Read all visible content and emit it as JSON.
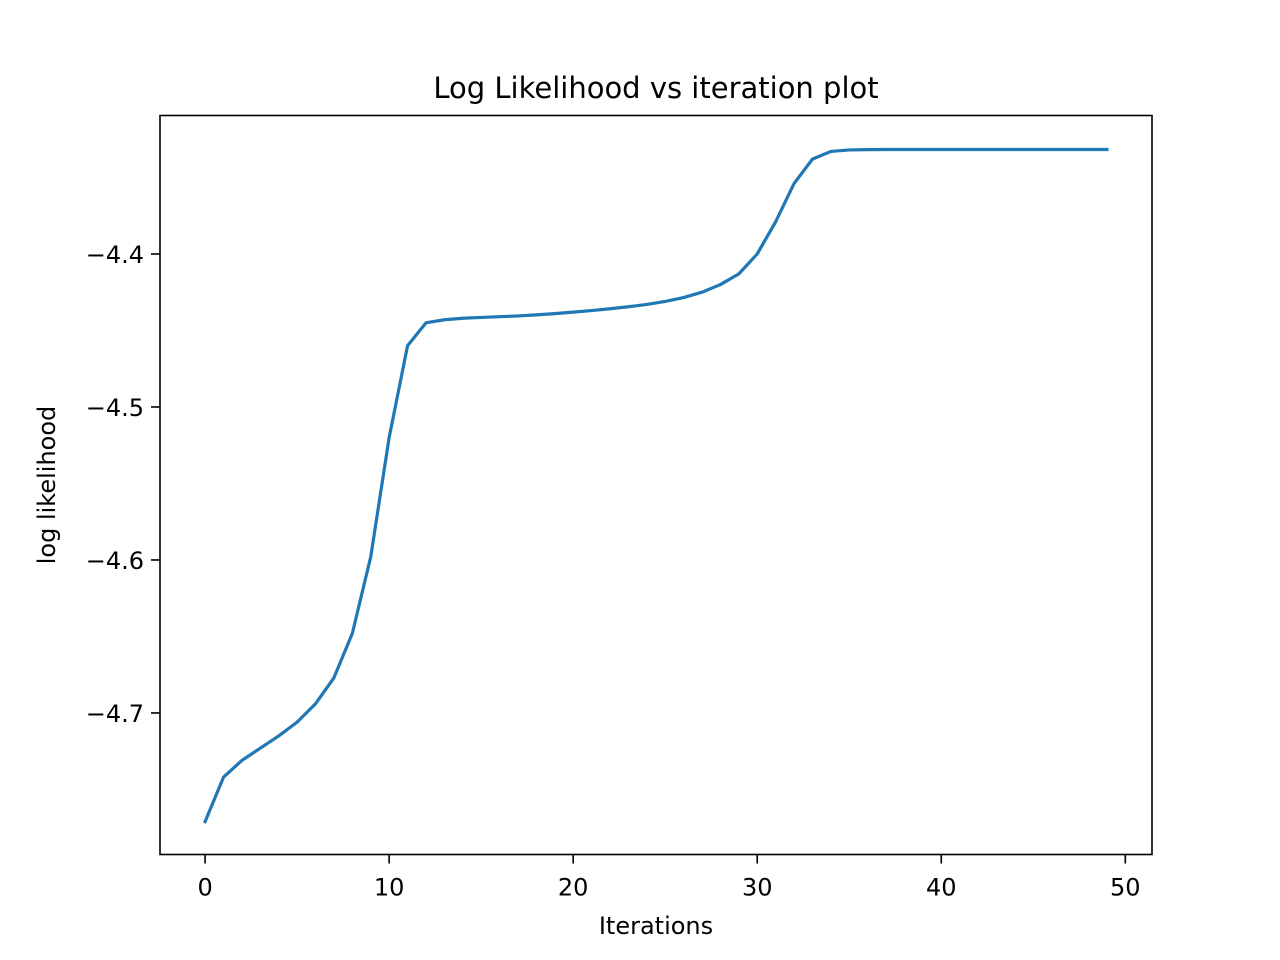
{
  "chart_data": {
    "type": "line",
    "title": "Log Likelihood vs iteration plot",
    "xlabel": "Iterations",
    "ylabel": "log likelihood",
    "xlim": [
      -2.45,
      51.45
    ],
    "ylim": [
      -4.7925,
      -4.3095
    ],
    "grid": false,
    "legend": "none",
    "x_ticks": [
      0,
      10,
      20,
      30,
      40,
      50
    ],
    "y_ticks": [
      -4.4,
      -4.5,
      -4.6,
      -4.7
    ],
    "x_tick_labels": [
      "0",
      "10",
      "20",
      "30",
      "40",
      "50"
    ],
    "y_tick_labels": [
      "−4.4",
      "−4.5",
      "−4.6",
      "−4.7"
    ],
    "line_color": "#1f77b4",
    "series": [
      {
        "x": [
          0,
          1,
          2,
          3,
          4,
          5,
          6,
          7,
          8,
          9,
          10,
          11,
          12,
          13,
          14,
          15,
          16,
          17,
          18,
          19,
          20,
          21,
          22,
          23,
          24,
          25,
          26,
          27,
          28,
          29,
          30,
          31,
          32,
          33,
          34,
          35,
          36,
          37,
          38,
          39,
          40,
          41,
          42,
          43,
          44,
          45,
          46,
          47,
          48,
          49
        ],
        "values": [
          -4.771,
          -4.742,
          -4.731,
          -4.723,
          -4.715,
          -4.706,
          -4.694,
          -4.677,
          -4.648,
          -4.598,
          -4.52,
          -4.46,
          -4.445,
          -4.443,
          -4.442,
          -4.4415,
          -4.441,
          -4.4405,
          -4.4398,
          -4.439,
          -4.438,
          -4.437,
          -4.4358,
          -4.4345,
          -4.433,
          -4.431,
          -4.4285,
          -4.425,
          -4.42,
          -4.413,
          -4.4,
          -4.379,
          -4.354,
          -4.338,
          -4.333,
          -4.332,
          -4.3318,
          -4.3317,
          -4.3317,
          -4.3317,
          -4.3317,
          -4.3317,
          -4.3317,
          -4.3317,
          -4.3317,
          -4.3317,
          -4.3317,
          -4.3317,
          -4.3317,
          -4.3317
        ]
      }
    ]
  }
}
